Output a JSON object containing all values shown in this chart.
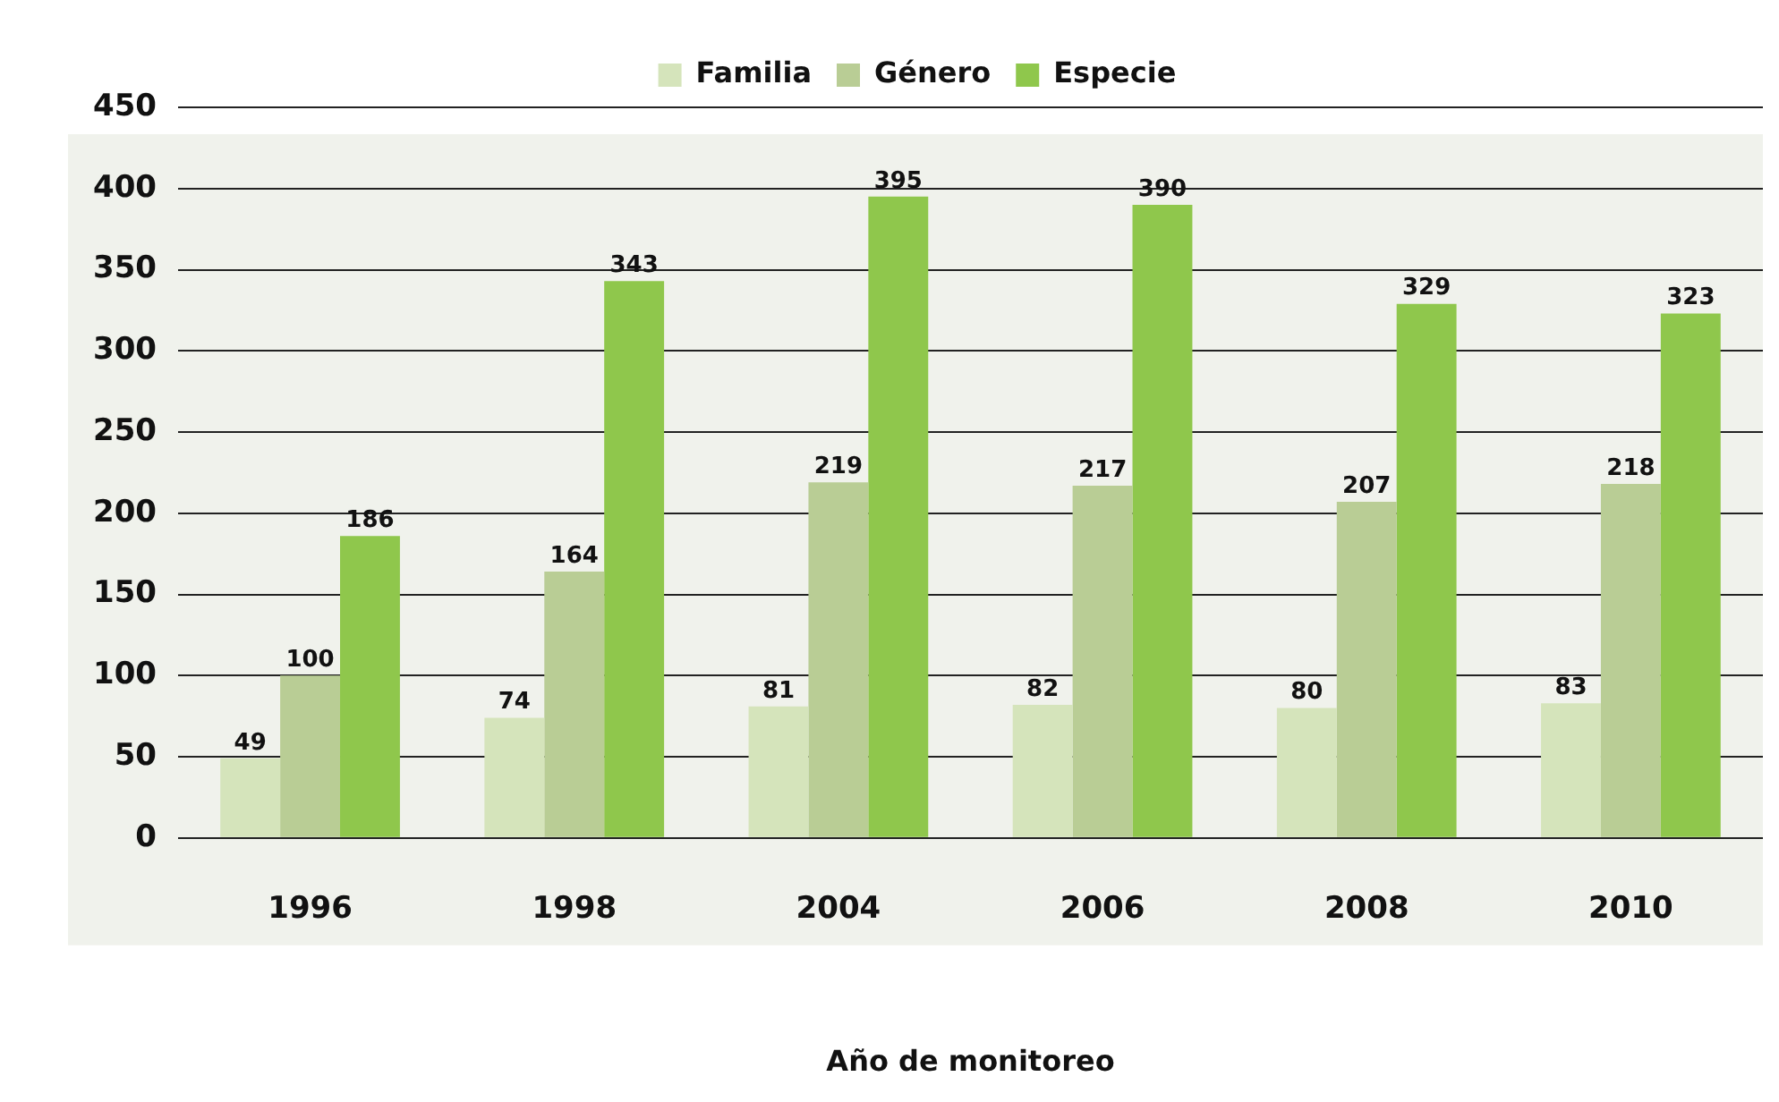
{
  "chart_data": {
    "type": "bar",
    "xlabel": "Año de monitoreo",
    "categories": [
      "1996",
      "1998",
      "2004",
      "2006",
      "2008",
      "2010"
    ],
    "series": [
      {
        "name": "Familia",
        "color": "#d5e4bb",
        "values": [
          49,
          74,
          81,
          82,
          80,
          83
        ]
      },
      {
        "name": "Género",
        "color": "#b9cd95",
        "values": [
          100,
          164,
          219,
          217,
          207,
          218
        ]
      },
      {
        "name": "Especie",
        "color": "#8fc74c",
        "values": [
          186,
          343,
          395,
          390,
          329,
          323
        ]
      }
    ],
    "ylim": [
      0,
      450
    ],
    "yticks": [
      0,
      50,
      100,
      150,
      200,
      250,
      300,
      350,
      400,
      450
    ],
    "grid": "y",
    "legend": "top",
    "data_labels": true
  }
}
